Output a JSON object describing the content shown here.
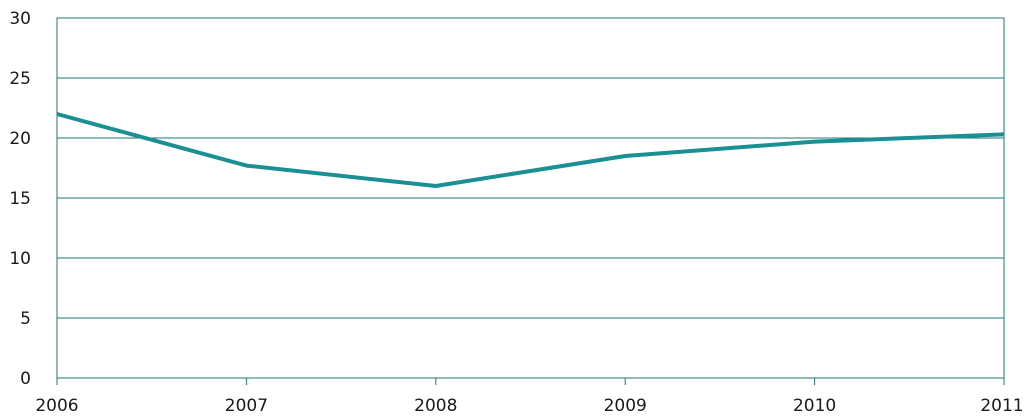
{
  "chart_data": {
    "type": "line",
    "title": "",
    "xlabel": "",
    "ylabel": "",
    "x": [
      2006,
      2007,
      2008,
      2009,
      2010,
      2011
    ],
    "series": [
      {
        "values": [
          22.0,
          17.7,
          16.0,
          18.5,
          19.7,
          20.3
        ],
        "color": "#1a9094"
      }
    ],
    "xlim": [
      2006,
      2011
    ],
    "ylim": [
      0,
      30
    ],
    "yticks": [
      0,
      5,
      10,
      15,
      20,
      25,
      30
    ],
    "xticks": [
      "2006",
      "2007",
      "2008",
      "2009",
      "2010",
      "2011"
    ],
    "grid": true,
    "legend": "none",
    "colors": {
      "line": "#1a9094",
      "grid": "#1b7a75",
      "frame": "#1b7a75"
    }
  }
}
